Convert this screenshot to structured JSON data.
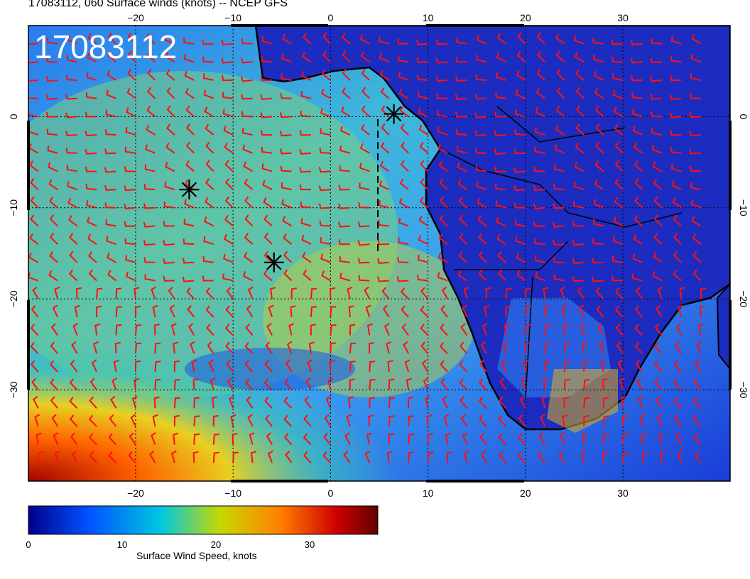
{
  "title": "17083112, 060 Surface winds (knots) -- NCEP GFS",
  "stamp": "17083112",
  "map": {
    "lon_range": [
      -31,
      41
    ],
    "lat_range": [
      -40,
      10
    ],
    "lon_ticks": [
      "-20",
      "-10",
      "0",
      "10",
      "20",
      "30"
    ],
    "lat_ticks": [
      "0",
      "-10",
      "-20",
      "-30"
    ],
    "grid": true,
    "markers": [
      {
        "name": "star-marker",
        "lon": -14.5,
        "lat": -8.0
      },
      {
        "name": "star-marker",
        "lon": -5.8,
        "lat": -16.0
      },
      {
        "name": "star-marker",
        "lon": 6.5,
        "lat": 0.3
      }
    ]
  },
  "colorbar": {
    "label": "Surface Wind Speed, knots",
    "ticks": [
      "0",
      "10",
      "20",
      "30"
    ],
    "range": [
      0,
      36
    ],
    "colors": [
      "#00008b",
      "#0050ff",
      "#00c8e0",
      "#c8d800",
      "#ff8000",
      "#d00000",
      "#600000"
    ]
  }
}
